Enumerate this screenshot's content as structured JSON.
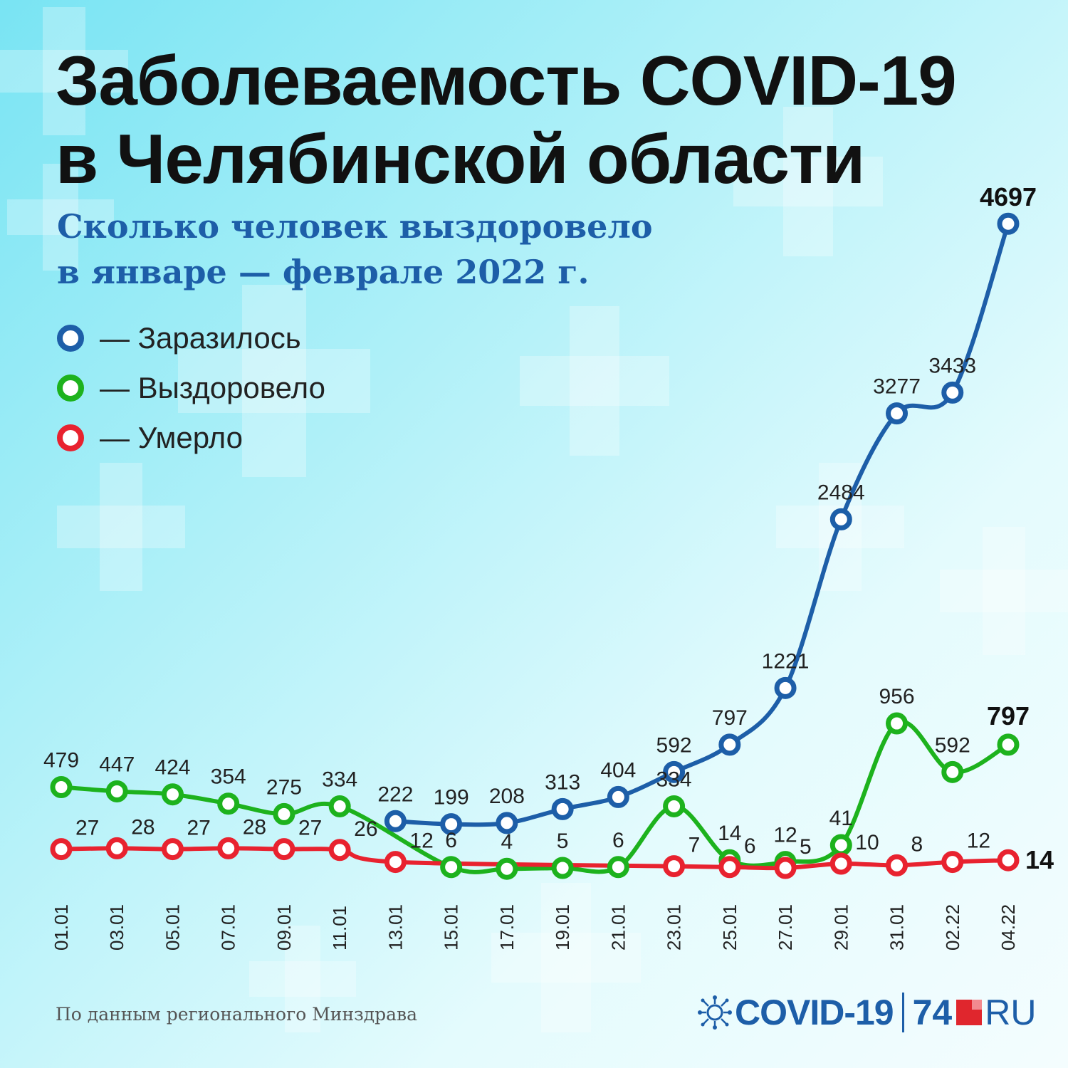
{
  "title": {
    "line1": "Заболеваемость COVID-19",
    "line2": "в Челябинской области"
  },
  "subtitle": {
    "line1": "Сколько человек выздоровело",
    "line2": "в январе — феврале 2022 г."
  },
  "legend": [
    {
      "label": "— Заразилось",
      "color": "#1d5ea8"
    },
    {
      "label": "— Выздоровело",
      "color": "#1db21d"
    },
    {
      "label": "— Умерло",
      "color": "#e8222f"
    }
  ],
  "footer": "По данным регионального Минздрава",
  "brand": {
    "covid": "COVID-19",
    "number": "74",
    "ru": "RU"
  },
  "colors": {
    "infected": "#1d5ea8",
    "recovered": "#1db21d",
    "died": "#e8222f"
  },
  "chart_data": {
    "type": "line",
    "x": [
      "01.01",
      "03.01",
      "05.01",
      "07.01",
      "09.01",
      "11.01",
      "13.01",
      "15.01",
      "17.01",
      "19.01",
      "21.01",
      "23.01",
      "25.01",
      "27.01",
      "29.01",
      "31.01",
      "02.22",
      "04.22"
    ],
    "series": [
      {
        "name": "Заразилось",
        "values": [
          null,
          null,
          null,
          null,
          null,
          null,
          222,
          199,
          208,
          313,
          404,
          592,
          797,
          1221,
          2484,
          3277,
          3433,
          4697
        ]
      },
      {
        "name": "Выздоровело",
        "values": [
          479,
          447,
          424,
          354,
          275,
          334,
          null,
          6,
          4,
          5,
          6,
          334,
          14,
          12,
          41,
          956,
          592,
          797
        ]
      },
      {
        "name": "Умерло",
        "values": [
          27,
          28,
          27,
          28,
          27,
          26,
          12,
          null,
          null,
          null,
          null,
          7,
          6,
          5,
          10,
          8,
          12,
          14
        ]
      }
    ],
    "xlabel": "",
    "ylabel": "",
    "grid": false,
    "legend": "top-left"
  }
}
